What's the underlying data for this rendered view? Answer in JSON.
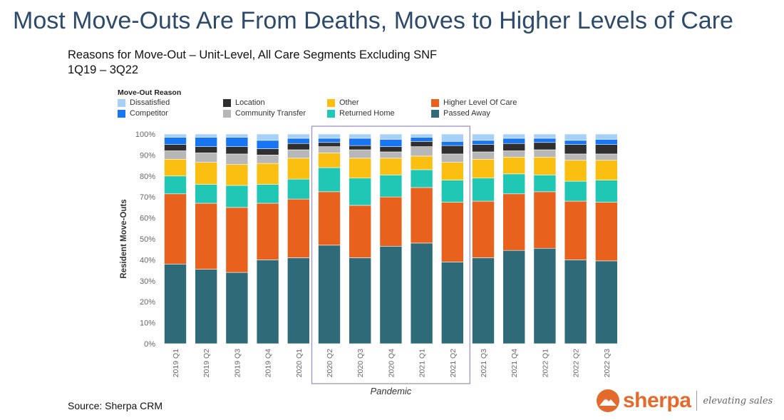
{
  "slide": {
    "title": "Most Move-Outs Are From Deaths, Moves to Higher Levels of Care",
    "subtitle_line1": "Reasons for Move-Out – Unit-Level, All Care Segments Excluding SNF",
    "subtitle_line2": "1Q19 – 3Q22",
    "source": "Source: Sherpa CRM"
  },
  "logo": {
    "word": "sherpa",
    "tagline": "elevating sales",
    "color": "#e46a2b"
  },
  "legend": {
    "title": "Move-Out Reason"
  },
  "chart_data": {
    "type": "bar",
    "stacked": true,
    "ylabel": "Resident Move-Outs",
    "ylim": [
      0,
      100
    ],
    "yticks": [
      "0%",
      "10%",
      "20%",
      "30%",
      "40%",
      "50%",
      "60%",
      "70%",
      "80%",
      "90%",
      "100%"
    ],
    "grid": false,
    "legend_placement": "top",
    "categories": [
      "2019 Q1",
      "2019 Q2",
      "2019 Q3",
      "2019 Q4",
      "2020 Q1",
      "2020 Q2",
      "2020 Q3",
      "2020 Q4",
      "2021 Q1",
      "2021 Q2",
      "2021 Q3",
      "2021 Q4",
      "2022 Q1",
      "2022 Q2",
      "2022 Q3"
    ],
    "series": [
      {
        "name": "Passed Away",
        "color": "#2e6a78",
        "values": [
          38,
          35.5,
          34,
          40,
          41,
          47,
          41,
          46.5,
          48,
          39,
          41,
          44.5,
          45.5,
          40,
          39.5
        ]
      },
      {
        "name": "Higher Level Of Care",
        "color": "#e8611d",
        "values": [
          33.5,
          31.5,
          31,
          27,
          28,
          25.5,
          25,
          23.5,
          26.5,
          28.5,
          27,
          27,
          27,
          28,
          28
        ]
      },
      {
        "name": "Returned Home",
        "color": "#1fc7b4",
        "values": [
          8.5,
          9,
          10.5,
          9,
          9.5,
          11.5,
          13,
          10.5,
          8.5,
          10.5,
          11,
          9.5,
          8,
          9.5,
          10.5
        ]
      },
      {
        "name": "Other",
        "color": "#fbbf12",
        "values": [
          8,
          10.5,
          10,
          10,
          10,
          7,
          9.5,
          8,
          6.5,
          8.5,
          9,
          8,
          8.5,
          10,
          9.5
        ]
      },
      {
        "name": "Community Transfer",
        "color": "#b7b7b7",
        "values": [
          4,
          4.5,
          5,
          4,
          4,
          3,
          4,
          3,
          4.5,
          4,
          3.5,
          3,
          3.5,
          3,
          3
        ]
      },
      {
        "name": "Location",
        "color": "#2f2f2f",
        "values": [
          3,
          3,
          3.5,
          3,
          3,
          2,
          2,
          2.5,
          2.5,
          4,
          3.5,
          3.5,
          3.5,
          4.5,
          4.5
        ]
      },
      {
        "name": "Competitor",
        "color": "#1976f2",
        "values": [
          3.5,
          4.5,
          4.5,
          4,
          2.5,
          2,
          3.5,
          3.5,
          2,
          2,
          2,
          2.5,
          2,
          2,
          2.5
        ]
      },
      {
        "name": "Dissatisfied",
        "color": "#a7d0f7",
        "values": [
          1.5,
          1.5,
          1.5,
          3,
          2,
          2,
          2,
          2.5,
          1.5,
          3.5,
          3,
          2,
          2,
          3,
          2.5
        ]
      }
    ],
    "legend_order": [
      "Dissatisfied",
      "Competitor",
      "Location",
      "Community Transfer",
      "Other",
      "Returned Home",
      "Higher Level Of Care",
      "Passed Away"
    ],
    "annotation": {
      "label": "Pandemic",
      "from": "2020 Q2",
      "to": "2021 Q2",
      "color": "#9f93c4"
    }
  }
}
